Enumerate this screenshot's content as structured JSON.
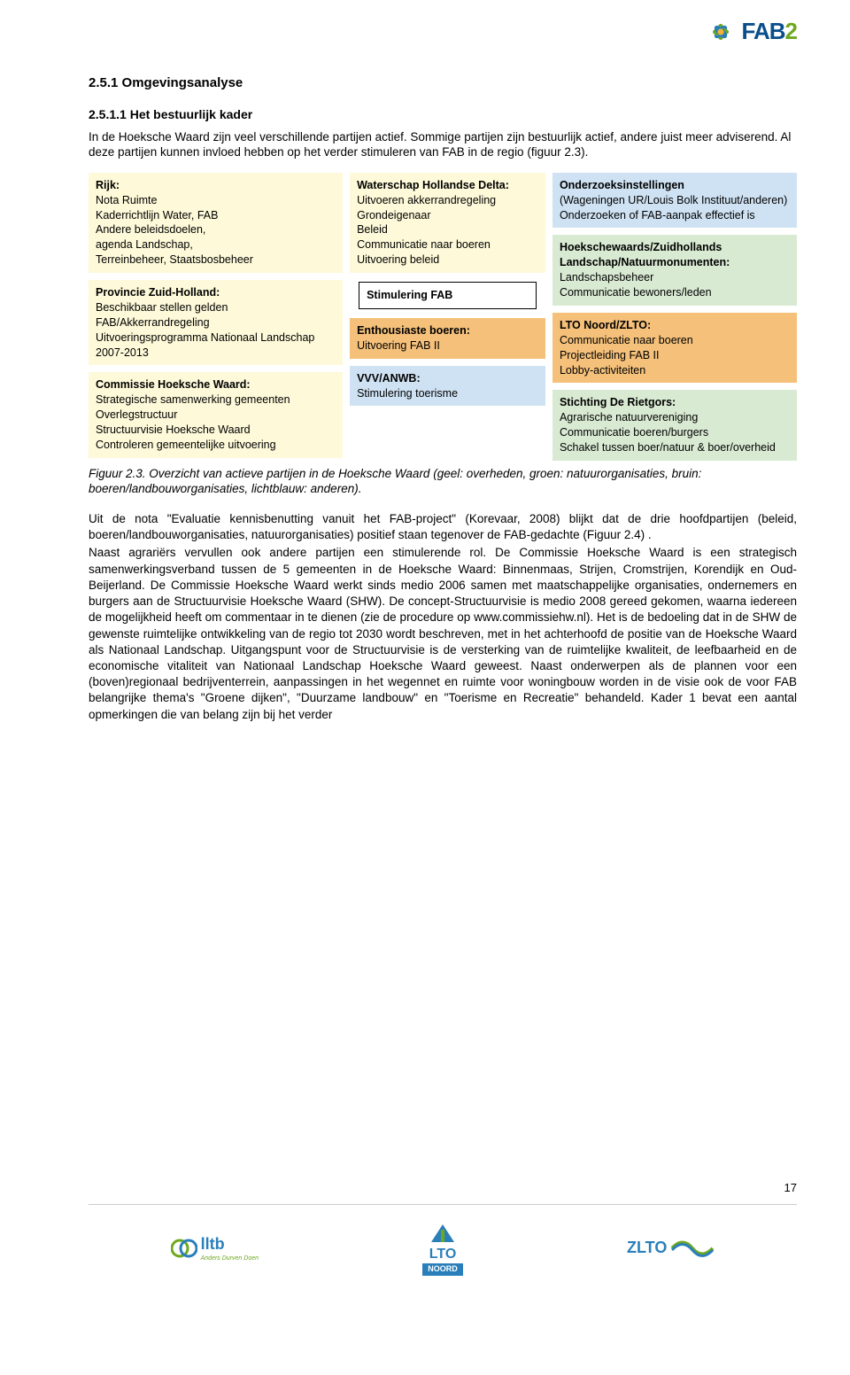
{
  "logo": {
    "brand_a": "FAB",
    "brand_b": "2"
  },
  "headings": {
    "h4": "2.5.1   Omgevingsanalyse",
    "h5": "2.5.1.1  Het bestuurlijk kader"
  },
  "intro": "In de Hoeksche Waard zijn veel verschillende partijen actief. Sommige partijen zijn bestuurlijk actief, andere juist meer adviserend. Al deze partijen kunnen invloed hebben op het verder stimuleren van FAB in de regio (figuur 2.3).",
  "diagram": {
    "left": [
      {
        "title": "Rijk:",
        "body": "Nota Ruimte\nKaderrichtlijn Water, FAB\nAndere beleidsdoelen,\nagenda Landschap,\nTerreinbeheer, Staatsbosbeheer",
        "cls": "yellow"
      },
      {
        "title": "Provincie Zuid-Holland:",
        "body": "Beschikbaar stellen gelden\nFAB/Akkerrandregeling\nUitvoeringsprogramma Nationaal Landschap 2007-2013",
        "cls": "yellow"
      },
      {
        "title": "Commissie Hoeksche Waard:",
        "body": "Strategische samenwerking gemeenten\nOverlegstructuur\nStructuurvisie Hoeksche Waard\nControleren gemeentelijke uitvoering",
        "cls": "yellow"
      }
    ],
    "mid": [
      {
        "title": "Waterschap Hollandse Delta:",
        "body": "Uitvoeren akkerrandregeling\nGrondeigenaar\nBeleid\nCommunicatie naar boeren\nUitvoering beleid",
        "cls": "yellow"
      },
      {
        "title": "Stimulering FAB",
        "body": "",
        "cls": "outlined"
      },
      {
        "title": "Enthousiaste boeren:",
        "body": "Uitvoering FAB II",
        "cls": "brown-bg"
      },
      {
        "title": "VVV/ANWB:",
        "body": "Stimulering toerisme",
        "cls": "blue-bg"
      }
    ],
    "right": [
      {
        "title": "Onderzoeksinstellingen",
        "body": "(Wageningen UR/Louis Bolk Instituut/anderen)\nOnderzoeken of FAB-aanpak effectief is",
        "cls": "blue-bg"
      },
      {
        "title": "Hoekschewaards/Zuidhollands Landschap/Natuurmonumenten:",
        "body": "Landschapsbeheer\nCommunicatie bewoners/leden",
        "cls": "green-bg"
      },
      {
        "title": "LTO Noord/ZLTO:",
        "body": "Communicatie naar boeren\nProjectleiding FAB II\nLobby-activiteiten",
        "cls": "brown-bg"
      },
      {
        "title": "Stichting De Rietgors:",
        "body": "Agrarische natuurvereniging\nCommunicatie boeren/burgers\nSchakel tussen boer/natuur & boer/overheid",
        "cls": "green-bg"
      }
    ]
  },
  "caption": "Figuur 2.3. Overzicht van actieve partijen in de Hoeksche Waard (geel: overheden, groen: natuurorganisaties, bruin: boeren/landbouworganisaties, lichtblauw: anderen).",
  "body1": "Uit de nota \"Evaluatie kennisbenutting vanuit het FAB-project\" (Korevaar, 2008) blijkt dat de drie hoofdpartijen (beleid, boeren/landbouworganisaties, natuurorganisaties) positief staan tegenover de FAB-gedachte (Figuur 2.4) .",
  "body2": "Naast agrariërs vervullen ook andere partijen een stimulerende rol. De Commissie Hoeksche Waard is een strategisch samenwerkingsverband tussen de 5 gemeenten in de Hoeksche Waard: Binnenmaas, Strijen, Cromstrijen, Korendijk en Oud-Beijerland. De Commissie Hoeksche Waard werkt sinds medio 2006 samen met maatschappelijke organisaties, ondernemers en burgers aan de Structuurvisie Hoeksche Waard (SHW). De concept-Structuurvisie is medio 2008 gereed gekomen, waarna iedereen de mogelijkheid heeft om commentaar in te dienen (zie de procedure op www.commissiehw.nl). Het is de bedoeling dat in de SHW de gewenste ruimtelijke ontwikkeling van de regio tot 2030 wordt beschreven, met in het achterhoofd de positie van de Hoeksche Waard als Nationaal Landschap. Uitgangspunt voor de Structuurvisie is de versterking van de ruimtelijke kwaliteit, de leefbaarheid en de economische vitaliteit van Nationaal Landschap Hoeksche Waard geweest. Naast onderwerpen als de plannen voor een (boven)regionaal bedrijventerrein, aanpassingen in het wegennet en ruimte voor woningbouw worden in de visie ook de voor FAB belangrijke thema's \"Groene dijken\", \"Duurzame landbouw\" en \"Toerisme en Recreatie\" behandeld. Kader 1 bevat een aantal opmerkingen die van belang zijn bij het verder",
  "page_number": "17",
  "footer": {
    "lltb": "lltb",
    "lltb_sub": "Anders Durven Doen",
    "lto": "LTO",
    "lto_sub": "NOORD",
    "zlto": "ZLTO"
  }
}
